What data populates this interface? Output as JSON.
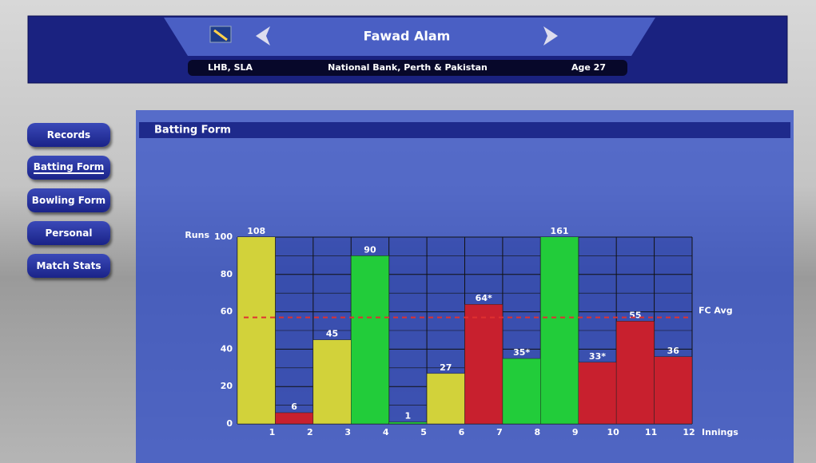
{
  "header": {
    "title": "Fawad Alam",
    "style": "LHB, SLA",
    "teams": "National Bank, Perth & Pakistan",
    "age": "Age 27"
  },
  "menu": [
    "Records",
    "Batting Form",
    "Bowling Form",
    "Personal",
    "Match Stats"
  ],
  "panel_title": "Batting Form",
  "chart_data": {
    "type": "bar",
    "y_label": "Runs",
    "x_label": "Innings",
    "categories": [
      "1",
      "2",
      "3",
      "4",
      "5",
      "6",
      "7",
      "8",
      "9",
      "10",
      "11",
      "12"
    ],
    "values": [
      108,
      6,
      45,
      90,
      1,
      27,
      64,
      35,
      161,
      33,
      55,
      36
    ],
    "value_labels": [
      "108",
      "6",
      "45",
      "90",
      "1",
      "27",
      "64*",
      "35*",
      "161",
      "33*",
      "55",
      "36"
    ],
    "colors": [
      "#d2d23a",
      "#c8202e",
      "#d2d23a",
      "#22cc3a",
      "#22cc3a",
      "#d2d23a",
      "#c8202e",
      "#22cc3a",
      "#22cc3a",
      "#c8202e",
      "#c8202e",
      "#c8202e"
    ],
    "ylim": [
      0,
      100
    ],
    "yticks": [
      0,
      20,
      40,
      60,
      80,
      100
    ],
    "grid": true,
    "reference": {
      "label": "FC Avg",
      "value": 57,
      "color": "#e03030"
    }
  }
}
